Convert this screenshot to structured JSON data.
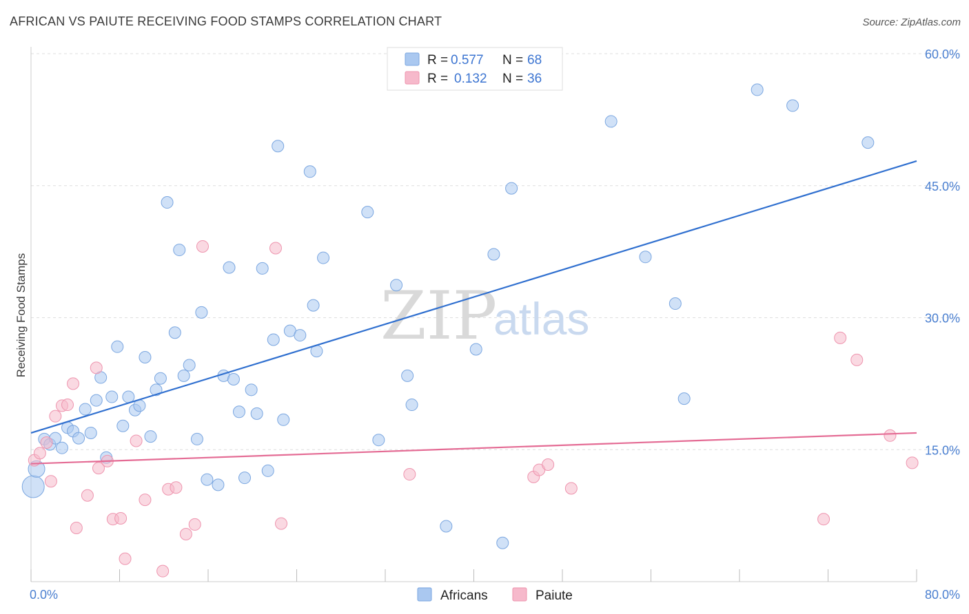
{
  "title": "AFRICAN VS PAIUTE RECEIVING FOOD STAMPS CORRELATION CHART",
  "source": "Source: ZipAtlas.com",
  "watermark": {
    "zip": "ZIP",
    "atlas": "atlas"
  },
  "legend": {
    "rows": [
      {
        "r_label": "R =",
        "r_value": "0.577",
        "n_label": "N =",
        "n_value": "68",
        "color": "#aac8f0"
      },
      {
        "r_label": "R =",
        "r_value": "0.132",
        "n_label": "N =",
        "n_value": "36",
        "color": "#f6b9cb"
      }
    ]
  },
  "colors": {
    "africans": "#aac8f0",
    "africans_stroke": "#7aa6e0",
    "africans_line": "#2f6fcf",
    "paiute": "#f6b9cb",
    "paiute_stroke": "#ee94ae",
    "paiute_line": "#e46b94",
    "grid": "#dedede",
    "axis": "#cccccc",
    "tick_text": "#4a7fd0"
  },
  "chart_data": {
    "type": "scatter",
    "title": "AFRICAN VS PAIUTE RECEIVING FOOD STAMPS CORRELATION CHART",
    "xlabel": "",
    "ylabel": "Receiving Food Stamps",
    "xlim": [
      0,
      80
    ],
    "ylim": [
      0,
      60
    ],
    "x_tick_labels": [
      {
        "value": 0,
        "label": "0.0%"
      },
      {
        "value": 80,
        "label": "80.0%"
      }
    ],
    "y_tick_labels": [
      {
        "value": 15,
        "label": "15.0%"
      },
      {
        "value": 30,
        "label": "30.0%"
      },
      {
        "value": 45,
        "label": "45.0%"
      },
      {
        "value": 60,
        "label": "60.0%"
      }
    ],
    "grid": true,
    "legend_position": "top-center",
    "series": [
      {
        "name": "Africans",
        "r": 0.577,
        "n": 68,
        "trend": {
          "x": [
            0,
            80
          ],
          "y": [
            16.9,
            47.8
          ]
        },
        "points": [
          [
            0.2,
            10.8
          ],
          [
            0.5,
            12.8
          ],
          [
            1.2,
            16.2
          ],
          [
            1.7,
            15.6
          ],
          [
            2.2,
            16.3
          ],
          [
            2.8,
            15.2
          ],
          [
            3.3,
            17.5
          ],
          [
            3.8,
            17.1
          ],
          [
            4.3,
            16.3
          ],
          [
            4.9,
            19.6
          ],
          [
            5.4,
            16.9
          ],
          [
            5.9,
            20.6
          ],
          [
            6.3,
            23.2
          ],
          [
            6.8,
            14.1
          ],
          [
            7.3,
            21.0
          ],
          [
            7.8,
            26.7
          ],
          [
            8.3,
            17.7
          ],
          [
            8.8,
            21.0
          ],
          [
            9.4,
            19.5
          ],
          [
            9.8,
            20.0
          ],
          [
            10.3,
            25.5
          ],
          [
            10.8,
            16.5
          ],
          [
            11.3,
            21.8
          ],
          [
            11.7,
            23.1
          ],
          [
            12.3,
            43.1
          ],
          [
            13.0,
            28.3
          ],
          [
            13.4,
            37.7
          ],
          [
            13.8,
            23.4
          ],
          [
            14.3,
            24.6
          ],
          [
            15.0,
            16.2
          ],
          [
            15.4,
            30.6
          ],
          [
            15.9,
            11.6
          ],
          [
            16.9,
            11.0
          ],
          [
            17.4,
            23.4
          ],
          [
            17.9,
            35.7
          ],
          [
            18.3,
            23.0
          ],
          [
            18.8,
            19.3
          ],
          [
            19.3,
            11.8
          ],
          [
            19.9,
            21.8
          ],
          [
            20.4,
            19.1
          ],
          [
            20.9,
            35.6
          ],
          [
            21.4,
            12.6
          ],
          [
            21.9,
            27.5
          ],
          [
            22.3,
            49.5
          ],
          [
            22.8,
            18.4
          ],
          [
            23.4,
            28.5
          ],
          [
            24.3,
            28.0
          ],
          [
            25.2,
            46.6
          ],
          [
            25.5,
            31.4
          ],
          [
            25.8,
            26.2
          ],
          [
            26.4,
            36.8
          ],
          [
            30.4,
            42.0
          ],
          [
            31.4,
            16.1
          ],
          [
            33.0,
            33.7
          ],
          [
            34.0,
            23.4
          ],
          [
            34.4,
            20.1
          ],
          [
            37.5,
            6.3
          ],
          [
            40.2,
            26.4
          ],
          [
            41.8,
            37.2
          ],
          [
            42.6,
            4.4
          ],
          [
            43.4,
            44.7
          ],
          [
            52.4,
            52.3
          ],
          [
            55.5,
            36.9
          ],
          [
            58.2,
            31.6
          ],
          [
            59.0,
            20.8
          ],
          [
            65.6,
            55.9
          ],
          [
            68.8,
            54.1
          ],
          [
            75.6,
            49.9
          ]
        ]
      },
      {
        "name": "Paiute",
        "r": 0.132,
        "n": 36,
        "trend": {
          "x": [
            0,
            80
          ],
          "y": [
            13.4,
            16.9
          ]
        },
        "points": [
          [
            0.3,
            13.8
          ],
          [
            0.8,
            14.6
          ],
          [
            1.4,
            15.8
          ],
          [
            1.8,
            11.4
          ],
          [
            2.2,
            18.8
          ],
          [
            2.8,
            20.0
          ],
          [
            3.3,
            20.1
          ],
          [
            3.8,
            22.5
          ],
          [
            4.1,
            6.1
          ],
          [
            5.1,
            9.8
          ],
          [
            5.9,
            24.3
          ],
          [
            6.1,
            12.9
          ],
          [
            6.9,
            13.7
          ],
          [
            7.4,
            7.1
          ],
          [
            8.1,
            7.2
          ],
          [
            8.5,
            2.6
          ],
          [
            9.5,
            16.0
          ],
          [
            10.3,
            9.3
          ],
          [
            11.9,
            1.2
          ],
          [
            12.4,
            10.5
          ],
          [
            13.1,
            10.7
          ],
          [
            14.0,
            5.4
          ],
          [
            14.8,
            6.5
          ],
          [
            15.5,
            38.1
          ],
          [
            22.1,
            37.9
          ],
          [
            22.6,
            6.6
          ],
          [
            34.2,
            12.2
          ],
          [
            45.4,
            11.9
          ],
          [
            45.9,
            12.7
          ],
          [
            46.7,
            13.3
          ],
          [
            48.8,
            10.6
          ],
          [
            71.6,
            7.1
          ],
          [
            73.1,
            27.7
          ],
          [
            74.6,
            25.2
          ],
          [
            77.6,
            16.6
          ],
          [
            79.6,
            13.5
          ]
        ]
      }
    ]
  }
}
